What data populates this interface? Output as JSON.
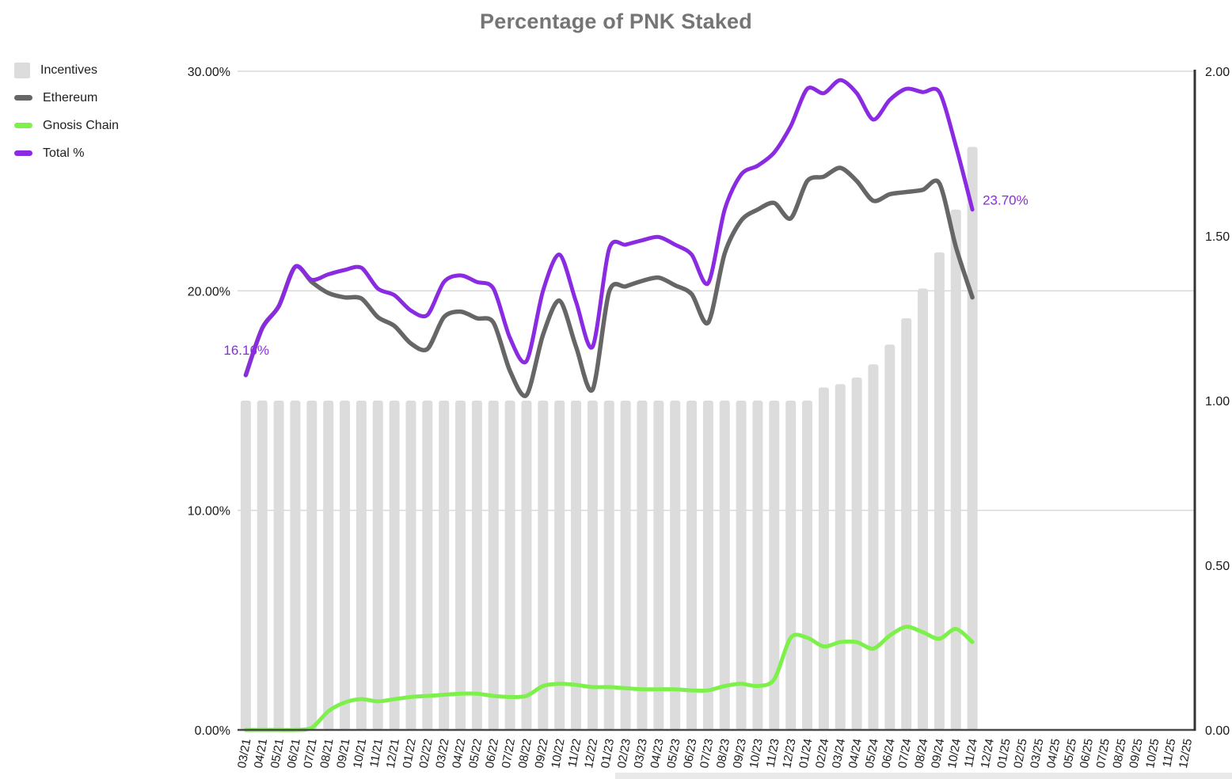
{
  "chart_data": {
    "type": "combo",
    "title": "Percentage of PNK Staked",
    "title_color": "#757575",
    "grid_color": "#d9d9d9",
    "axis_line_color": "#4a4a4a",
    "right_border_color": "#333333",
    "tick_label_color": "#1a1a1a",
    "legend_position": "top-left",
    "categories": [
      "03/21",
      "04/21",
      "05/21",
      "06/21",
      "07/21",
      "08/21",
      "09/21",
      "10/21",
      "11/21",
      "12/21",
      "01/22",
      "02/22",
      "03/22",
      "04/22",
      "05/22",
      "06/22",
      "07/22",
      "08/22",
      "09/22",
      "10/22",
      "11/22",
      "12/22",
      "01/23",
      "02/23",
      "03/23",
      "04/23",
      "05/23",
      "06/23",
      "07/23",
      "08/23",
      "09/23",
      "10/23",
      "11/23",
      "12/23",
      "01/24",
      "02/24",
      "03/24",
      "04/24",
      "05/24",
      "06/24",
      "07/24",
      "08/24",
      "09/24",
      "10/24",
      "11/24",
      "12/24",
      "01/25",
      "02/25",
      "03/25",
      "04/25",
      "05/25",
      "06/25",
      "07/25",
      "08/25",
      "09/25",
      "10/25",
      "11/25",
      "12/25"
    ],
    "left_axis": {
      "min": 0,
      "max": 30,
      "ticks": [
        {
          "label": "30.00%",
          "v": 30
        },
        {
          "label": "20.00%",
          "v": 20
        },
        {
          "label": "10.00%",
          "v": 10
        },
        {
          "label": "0.00%",
          "v": 0
        }
      ]
    },
    "right_axis": {
      "min": 0,
      "max": 2,
      "ticks": [
        {
          "label": "2.00",
          "v": 2
        },
        {
          "label": "1.50",
          "v": 1.5
        },
        {
          "label": "1.00",
          "v": 1
        },
        {
          "label": "0.50",
          "v": 0.5
        },
        {
          "label": "0.00",
          "v": 0
        }
      ]
    },
    "series": [
      {
        "name": "Incentives",
        "type": "bar",
        "axis": "right",
        "color": "#dcdcdc",
        "values": [
          1,
          1,
          1,
          1,
          1,
          1,
          1,
          1,
          1,
          1,
          1,
          1,
          1,
          1,
          1,
          1,
          1,
          1,
          1,
          1,
          1,
          1,
          1,
          1,
          1,
          1,
          1,
          1,
          1,
          1,
          1,
          1,
          1,
          1,
          1,
          1.04,
          1.05,
          1.07,
          1.11,
          1.17,
          1.25,
          1.34,
          1.45,
          1.58,
          1.77,
          null,
          null,
          null,
          null,
          null,
          null,
          null,
          null,
          null,
          null,
          null,
          null,
          null
        ]
      },
      {
        "name": "Ethereum",
        "type": "line",
        "axis": "left",
        "color": "#666666",
        "values": [
          16.16,
          18.3,
          19.3,
          21.1,
          20.4,
          19.9,
          19.7,
          19.65,
          18.8,
          18.4,
          17.6,
          17.35,
          18.8,
          19.05,
          18.75,
          18.55,
          16.35,
          15.25,
          18.0,
          19.55,
          17.45,
          15.5,
          19.95,
          20.2,
          20.45,
          20.6,
          20.25,
          19.85,
          18.55,
          21.7,
          23.2,
          23.7,
          24.0,
          23.3,
          25.0,
          25.2,
          25.6,
          25.0,
          24.1,
          24.4,
          24.5,
          24.6,
          24.9,
          22.0,
          19.7,
          null,
          null,
          null,
          null,
          null,
          null,
          null,
          null,
          null,
          null,
          null,
          null,
          null
        ]
      },
      {
        "name": "Gnosis Chain",
        "type": "line",
        "axis": "left",
        "color": "#7df04b",
        "values": [
          0,
          0,
          0,
          0,
          0.1,
          0.85,
          1.25,
          1.4,
          1.3,
          1.4,
          1.5,
          1.55,
          1.6,
          1.65,
          1.65,
          1.55,
          1.5,
          1.55,
          2.0,
          2.1,
          2.05,
          1.95,
          1.95,
          1.9,
          1.85,
          1.85,
          1.85,
          1.8,
          1.8,
          2.0,
          2.1,
          2.0,
          2.3,
          4.2,
          4.2,
          3.8,
          4.0,
          4.0,
          3.7,
          4.3,
          4.7,
          4.45,
          4.15,
          4.6,
          4.0,
          null,
          null,
          null,
          null,
          null,
          null,
          null,
          null,
          null,
          null,
          null,
          null,
          null
        ]
      },
      {
        "name": "Total %",
        "type": "line",
        "axis": "left",
        "color": "#8a2be2",
        "values": [
          16.16,
          18.3,
          19.3,
          21.1,
          20.5,
          20.75,
          20.95,
          21.05,
          20.1,
          19.8,
          19.1,
          18.9,
          20.4,
          20.7,
          20.4,
          20.1,
          17.85,
          16.8,
          20.0,
          21.65,
          19.5,
          17.45,
          21.9,
          22.1,
          22.3,
          22.45,
          22.1,
          21.65,
          20.35,
          23.7,
          25.3,
          25.7,
          26.3,
          27.5,
          29.2,
          29.0,
          29.6,
          29.0,
          27.8,
          28.7,
          29.2,
          29.05,
          29.05,
          26.6,
          23.7,
          null,
          null,
          null,
          null,
          null,
          null,
          null,
          null,
          null,
          null,
          null,
          null,
          null
        ]
      }
    ],
    "annotations": [
      {
        "text": "16.16%",
        "series": "Total %",
        "point": 0,
        "position": "above-left",
        "color": "#8a2be2"
      },
      {
        "text": "23.70%",
        "series": "Total %",
        "point": 44,
        "position": "right",
        "color": "#8a2be2"
      }
    ]
  }
}
